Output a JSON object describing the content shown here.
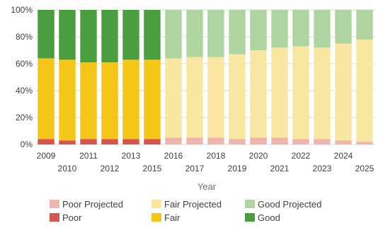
{
  "chart_data": {
    "type": "bar",
    "stacked": true,
    "title": "",
    "xlabel": "Year",
    "ylabel": "",
    "ylim": [
      0,
      100
    ],
    "y_ticks": [
      "0%",
      "20%",
      "40%",
      "60%",
      "80%",
      "100%"
    ],
    "grid": true,
    "legend_position": "bottom",
    "categories": [
      "2009",
      "2010",
      "2011",
      "2012",
      "2013",
      "2015",
      "2016",
      "2017",
      "2018",
      "2019",
      "2020",
      "2021",
      "2022",
      "2023",
      "2024",
      "2025"
    ],
    "series": [
      {
        "name": "Poor",
        "color": "#d9534f",
        "values": [
          4,
          3,
          4,
          4,
          4,
          4,
          null,
          null,
          null,
          null,
          null,
          null,
          null,
          null,
          null,
          null
        ]
      },
      {
        "name": "Fair",
        "color": "#f5c518",
        "values": [
          60,
          60,
          57,
          57,
          59,
          59,
          null,
          null,
          null,
          null,
          null,
          null,
          null,
          null,
          null,
          null
        ]
      },
      {
        "name": "Good",
        "color": "#4a9e3f",
        "values": [
          36,
          37,
          39,
          39,
          37,
          37,
          null,
          null,
          null,
          null,
          null,
          null,
          null,
          null,
          null,
          null
        ]
      },
      {
        "name": "Poor Projected",
        "color": "#eeb4ae",
        "values": [
          null,
          null,
          null,
          null,
          null,
          null,
          5,
          5,
          5,
          4,
          5,
          5,
          4,
          4,
          3,
          2
        ]
      },
      {
        "name": "Fair Projected",
        "color": "#f9e6a0",
        "values": [
          null,
          null,
          null,
          null,
          null,
          null,
          59,
          60,
          60,
          63,
          65,
          67,
          69,
          68,
          72,
          76
        ]
      },
      {
        "name": "Good Projected",
        "color": "#aed4a0",
        "values": [
          null,
          null,
          null,
          null,
          null,
          null,
          36,
          35,
          35,
          33,
          30,
          28,
          27,
          28,
          25,
          22
        ]
      }
    ],
    "legend_order": [
      "Poor Projected",
      "Fair Projected",
      "Good Projected",
      "Poor",
      "Fair",
      "Good"
    ]
  }
}
